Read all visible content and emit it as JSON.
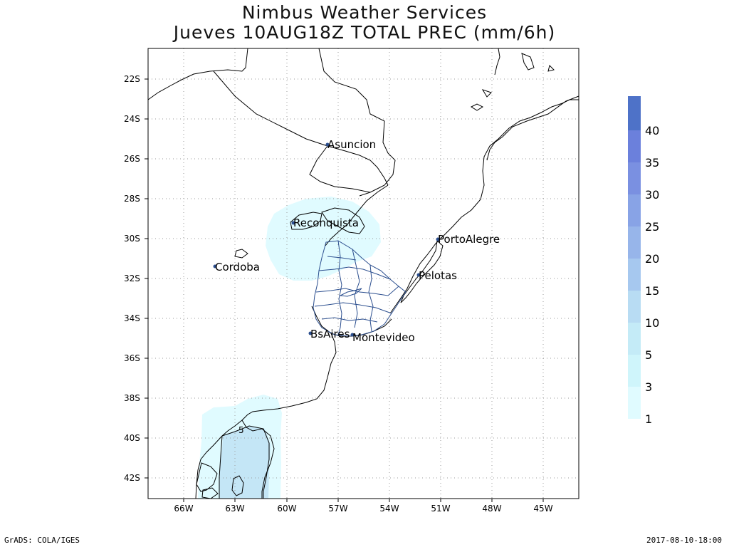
{
  "title": "Nimbus Weather Services",
  "subtitle": "Jueves 10AUG18Z TOTAL PREC (mm/6h)",
  "lat_ticks": [
    "22S",
    "24S",
    "26S",
    "28S",
    "30S",
    "32S",
    "34S",
    "36S",
    "38S",
    "40S",
    "42S"
  ],
  "lon_ticks": [
    "66W",
    "63W",
    "60W",
    "57W",
    "54W",
    "51W",
    "48W",
    "45W"
  ],
  "cities": [
    {
      "name": "Asuncion"
    },
    {
      "name": "Reconquista"
    },
    {
      "name": "PortoAlegre"
    },
    {
      "name": "Cordoba"
    },
    {
      "name": "Pelotas"
    },
    {
      "name": "BsAires"
    },
    {
      "name": "Montevideo"
    }
  ],
  "contour_label": "5",
  "colorbar": {
    "labels": [
      "1",
      "3",
      "5",
      "10",
      "15",
      "20",
      "25",
      "30",
      "35",
      "40"
    ],
    "colors": [
      "#e0fbff",
      "#cff5fb",
      "#c4ebf7",
      "#b8dcf3",
      "#a6c8ef",
      "#97b5ea",
      "#88a3e6",
      "#7a90e1",
      "#6b80dc",
      "#4e72c8"
    ]
  },
  "footer_left": "GrADS: COLA/IGES",
  "footer_right": "2017-08-10-18:00"
}
